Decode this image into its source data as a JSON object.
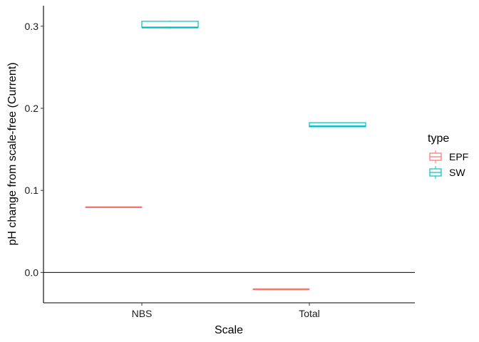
{
  "chart_data": {
    "type": "boxplot",
    "xlabel": "Scale",
    "ylabel": "pH change from scale-free (Current)",
    "categories": [
      "NBS",
      "Total"
    ],
    "ylim": [
      -0.037,
      0.325
    ],
    "y_ticks": [
      0.0,
      0.1,
      0.2,
      0.3
    ],
    "y_tick_labels": [
      "0.0",
      "0.1",
      "0.2",
      "0.3"
    ],
    "reference_line": 0,
    "grid": false,
    "legend": {
      "title": "type",
      "position": "right",
      "entries": [
        "EPF",
        "SW"
      ]
    },
    "series": [
      {
        "name": "EPF",
        "color": "#F8766D",
        "boxes": [
          {
            "category": "NBS",
            "min": 0.0795,
            "q1": 0.0795,
            "median": 0.0795,
            "q3": 0.0795,
            "max": 0.0795
          },
          {
            "category": "Total",
            "min": -0.0205,
            "q1": -0.0205,
            "median": -0.0205,
            "q3": -0.0205,
            "max": -0.0205
          }
        ]
      },
      {
        "name": "SW",
        "color": "#00BFC4",
        "boxes": [
          {
            "category": "NBS",
            "min": 0.297,
            "q1": 0.2985,
            "median": 0.2985,
            "q3": 0.306,
            "max": 0.307
          },
          {
            "category": "Total",
            "min": 0.1775,
            "q1": 0.1775,
            "median": 0.178,
            "q3": 0.1825,
            "max": 0.183
          }
        ]
      }
    ]
  }
}
